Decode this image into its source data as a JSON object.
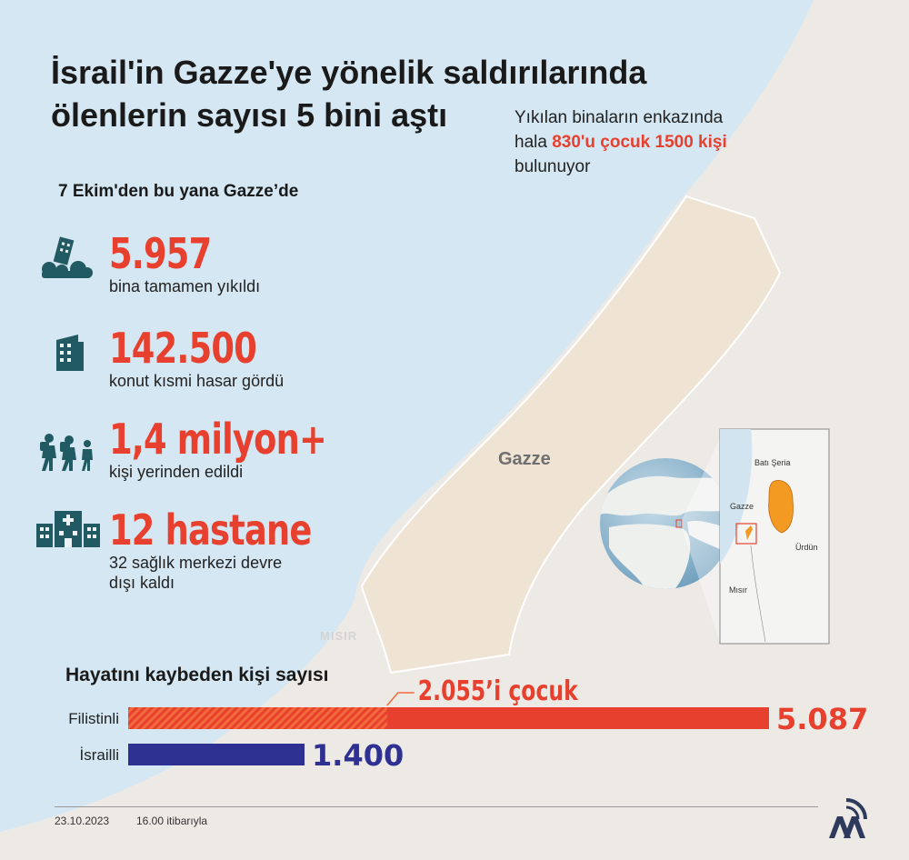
{
  "title_lines": [
    "İsrail'in Gazze'ye yönelik saldırılarında",
    "ölenlerin sayısı 5 bini aştı"
  ],
  "rubble_note": {
    "line1": "Yıkılan binaların enkazında",
    "line2_prefix": "hala ",
    "line2_highlight": "830'u çocuk 1500 kişi",
    "line3": "bulunuyor"
  },
  "since_label": "7 Ekim'den bu yana Gazze’de",
  "stats": [
    {
      "value": "5.957",
      "desc": "bina tamamen yıkıldı",
      "icon": "collapsed-building-icon"
    },
    {
      "value": "142.500",
      "desc": "konut kısmi hasar gördü",
      "icon": "building-icon"
    },
    {
      "value": "1,4 milyon+",
      "desc": "kişi yerinden edildi",
      "icon": "displaced-people-icon"
    },
    {
      "value": "12 hastane",
      "desc_line1": "32 sağlık merkezi devre",
      "desc_line2": "dışı kaldı",
      "icon": "hospital-icon"
    }
  ],
  "map_labels": {
    "gaza": "Gazze",
    "egypt": "MISIR"
  },
  "inset_labels": {
    "west_bank": "Batı Şeria",
    "gaza": "Gazze",
    "jordan": "Ürdün",
    "egypt": "Mısır"
  },
  "chart_data": {
    "type": "bar",
    "title": "Hayatını kaybeden kişi sayısı",
    "categories": [
      "Filistinli",
      "İsrailli"
    ],
    "values": [
      5087,
      1400
    ],
    "value_labels": [
      "5.087",
      "1.400"
    ],
    "sub_segment": {
      "category": "Filistinli",
      "value": 2055,
      "label": "2.055’i çocuk"
    },
    "colors": {
      "palestinian": "#e8402e",
      "israeli": "#2e3192",
      "children": "#f26a3b"
    }
  },
  "footer": {
    "date": "23.10.2023",
    "time": "16.00 itibarıyla"
  },
  "colors": {
    "accent": "#e8402e",
    "icon": "#215a63",
    "sea": "#d3e6f1",
    "gaza_land": "#eee3d4"
  }
}
